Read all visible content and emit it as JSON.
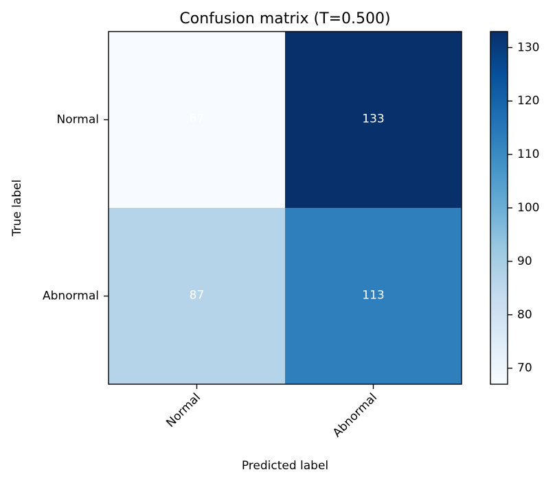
{
  "chart_data": {
    "type": "heatmap",
    "title": "Confusion matrix (T=0.500)",
    "xlabel": "Predicted label",
    "ylabel": "True label",
    "x_categories": [
      "Normal",
      "Abnormal"
    ],
    "y_categories": [
      "Normal",
      "Abnormal"
    ],
    "values": [
      [
        67,
        133
      ],
      [
        87,
        113
      ]
    ],
    "colormap": "Blues",
    "colorbar": {
      "range": [
        67,
        133
      ],
      "ticks": [
        70,
        80,
        90,
        100,
        110,
        120,
        130
      ]
    }
  }
}
